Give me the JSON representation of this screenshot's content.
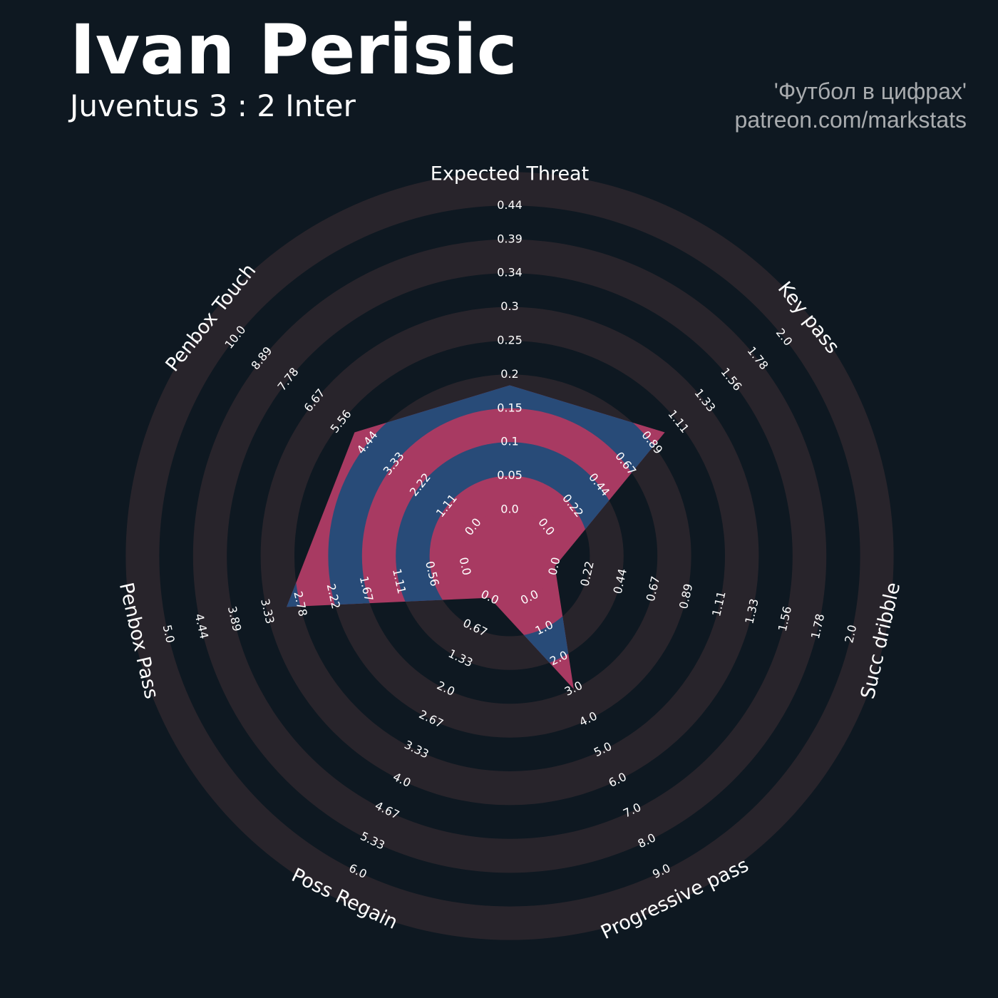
{
  "header": {
    "title": "Ivan Perisic",
    "subtitle": "Juventus 3 : 2 Inter",
    "credit_line1": "'Футбол в цифрах'",
    "credit_line2": "patreon.com/markstats"
  },
  "colors": {
    "background": "#0e1821",
    "ring_band": "#28242b",
    "value_fill": "#a83a62",
    "value_alt_fill": "#284b78",
    "text": "#ffffff",
    "credit": "#a9acaf"
  },
  "chart_data": {
    "type": "radar",
    "title": "Ivan Perisic",
    "subtitle": "Juventus 3 : 2 Inter",
    "legend": "none",
    "grid": true,
    "axes": [
      {
        "name": "Expected Threat",
        "ticks": [
          "0.0",
          "0.05",
          "0.1",
          "0.15",
          "0.2",
          "0.25",
          "0.3",
          "0.34",
          "0.39",
          "0.44"
        ],
        "min": 0,
        "max": 0.44,
        "value": 0.18
      },
      {
        "name": "Key pass",
        "ticks": [
          "0.0",
          "0.22",
          "0.44",
          "0.67",
          "0.89",
          "1.11",
          "1.33",
          "1.56",
          "1.78",
          "2.0"
        ],
        "min": 0,
        "max": 2.0,
        "value": 1.0
      },
      {
        "name": "Succ dribble",
        "ticks": [
          "0.0",
          "0.22",
          "0.44",
          "0.67",
          "0.89",
          "1.11",
          "1.33",
          "1.56",
          "1.78",
          "2.0"
        ],
        "min": 0,
        "max": 2.0,
        "value": 0.0
      },
      {
        "name": "Progressive pass",
        "ticks": [
          "0.0",
          "1.0",
          "2.0",
          "3.0",
          "4.0",
          "5.0",
          "6.0",
          "7.0",
          "8.0",
          "9.0"
        ],
        "min": 0,
        "max": 9.0,
        "value": 3.0
      },
      {
        "name": "Poss Regain",
        "ticks": [
          "0.0",
          "0.67",
          "1.33",
          "2.0",
          "2.67",
          "3.33",
          "4.0",
          "4.67",
          "5.33",
          "6.0"
        ],
        "min": 0,
        "max": 6.0,
        "value": 0.0
      },
      {
        "name": "Penbox Pass",
        "ticks": [
          "0.0",
          "0.56",
          "1.11",
          "1.67",
          "2.22",
          "2.78",
          "3.33",
          "3.89",
          "4.44",
          "5.0"
        ],
        "min": 0,
        "max": 5.0,
        "value": 3.0
      },
      {
        "name": "Penbox Touch",
        "ticks": [
          "0.0",
          "1.11",
          "2.22",
          "3.33",
          "4.44",
          "5.56",
          "6.67",
          "7.78",
          "8.89",
          "10.0"
        ],
        "min": 0,
        "max": 10.0,
        "value": 5.0
      }
    ]
  }
}
